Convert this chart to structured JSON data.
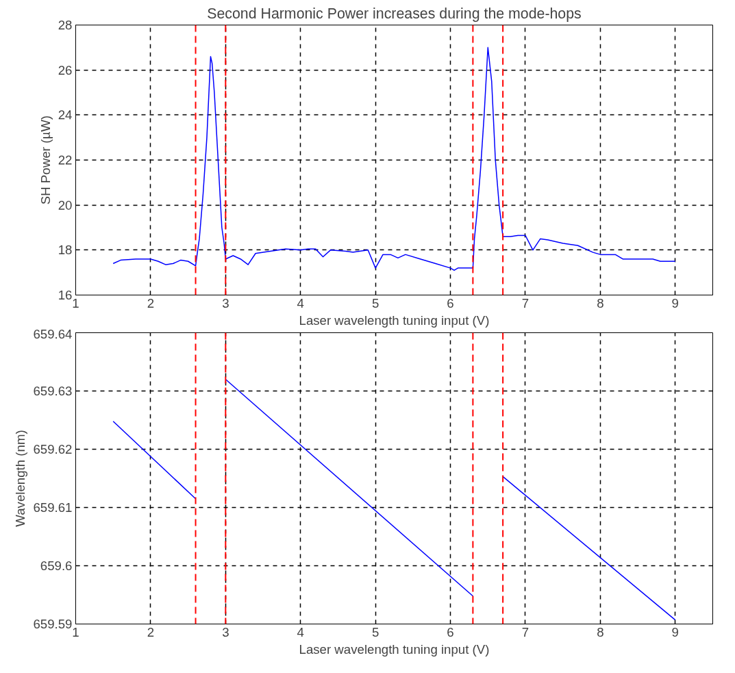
{
  "chart_data": [
    {
      "type": "line",
      "title": "Second Harmonic Power increases during the mode-hops",
      "xlabel": "Laser wavelength tuning input (V)",
      "ylabel": "SH Power (µW)",
      "xlim": [
        1,
        9.5
      ],
      "xticks": [
        1,
        2,
        3,
        4,
        5,
        6,
        7,
        8,
        9
      ],
      "ylim": [
        16,
        28
      ],
      "yticks": [
        16,
        18,
        20,
        22,
        24,
        26,
        28
      ],
      "grid": true,
      "series": [
        {
          "color": "#0000ff",
          "x": [
            1.5,
            1.6,
            1.8,
            2.0,
            2.1,
            2.2,
            2.3,
            2.4,
            2.5,
            2.6,
            2.62,
            2.65,
            2.7,
            2.75,
            2.8,
            2.82,
            2.85,
            2.9,
            2.95,
            2.98,
            3.0,
            3.1,
            3.2,
            3.3,
            3.4,
            3.6,
            3.8,
            4.0,
            4.1,
            4.2,
            4.3,
            4.4,
            4.6,
            4.7,
            4.9,
            5.0,
            5.1,
            5.2,
            5.3,
            5.4,
            5.6,
            5.8,
            6.0,
            6.05,
            6.1,
            6.3,
            6.32,
            6.35,
            6.4,
            6.45,
            6.5,
            6.55,
            6.6,
            6.65,
            6.7,
            6.8,
            6.9,
            7.0,
            7.1,
            7.2,
            7.3,
            7.5,
            7.7,
            7.9,
            8.0,
            8.2,
            8.3,
            8.7,
            8.8,
            9.0
          ],
          "values": [
            17.4,
            17.55,
            17.6,
            17.6,
            17.5,
            17.35,
            17.4,
            17.55,
            17.5,
            17.3,
            17.8,
            18.5,
            20.5,
            23,
            26.6,
            26.3,
            25,
            22,
            19,
            18.3,
            17.6,
            17.75,
            17.6,
            17.35,
            17.85,
            17.95,
            18.05,
            18.0,
            18.05,
            18.05,
            17.7,
            18.0,
            17.95,
            17.9,
            18.0,
            17.2,
            17.8,
            17.8,
            17.65,
            17.8,
            17.6,
            17.4,
            17.2,
            17.1,
            17.2,
            17.2,
            18.5,
            19.5,
            21.5,
            24,
            27,
            25.5,
            22,
            20,
            18.6,
            18.6,
            18.65,
            18.65,
            18.0,
            18.5,
            18.45,
            18.3,
            18.2,
            17.9,
            17.8,
            17.8,
            17.6,
            17.6,
            17.5,
            17.5
          ]
        }
      ],
      "ref_lines": [
        {
          "axis": "x",
          "value": 2.6,
          "color": "#ff0000",
          "line_style": "dashed"
        },
        {
          "axis": "x",
          "value": 3.0,
          "color": "#ff0000",
          "line_style": "dashed"
        },
        {
          "axis": "x",
          "value": 6.3,
          "color": "#ff0000",
          "line_style": "dashed"
        },
        {
          "axis": "x",
          "value": 6.7,
          "color": "#ff0000",
          "line_style": "dashed"
        }
      ]
    },
    {
      "type": "line",
      "xlabel": "Laser wavelength tuning input (V)",
      "ylabel": "Wavelength (nm)",
      "xlim": [
        1,
        9.5
      ],
      "xticks": [
        1,
        2,
        3,
        4,
        5,
        6,
        7,
        8,
        9
      ],
      "ylim": [
        659.59,
        659.64
      ],
      "yticks": [
        659.59,
        659.6,
        659.61,
        659.62,
        659.63,
        659.64
      ],
      "grid": true,
      "series": [
        {
          "color": "#0000ff",
          "x": [
            1.5,
            2.6,
            2.8,
            3.0,
            6.3,
            6.5,
            6.7,
            9.0
          ],
          "values": [
            659.6248,
            659.6115,
            null,
            659.632,
            659.5948,
            null,
            659.6153,
            659.5907
          ]
        }
      ],
      "ref_lines": [
        {
          "axis": "x",
          "value": 2.6,
          "color": "#ff0000",
          "line_style": "dashed"
        },
        {
          "axis": "x",
          "value": 3.0,
          "color": "#ff0000",
          "line_style": "dashed"
        },
        {
          "axis": "x",
          "value": 6.3,
          "color": "#ff0000",
          "line_style": "dashed"
        },
        {
          "axis": "x",
          "value": 6.7,
          "color": "#ff0000",
          "line_style": "dashed"
        }
      ]
    }
  ]
}
